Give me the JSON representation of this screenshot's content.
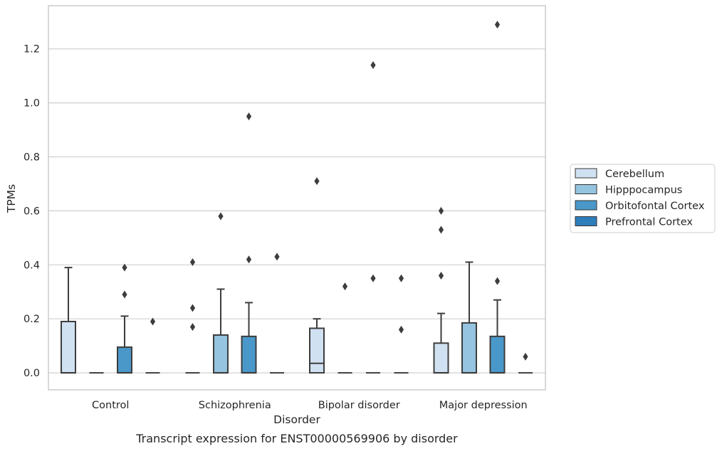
{
  "chart_data": {
    "type": "box",
    "caption": "Transcript expression for ENST00000569906 by disorder",
    "xlabel": "Disorder",
    "ylabel": "TPMs",
    "ylim": [
      -0.063,
      1.36
    ],
    "yticks": [
      0.0,
      0.2,
      0.4,
      0.6,
      0.8,
      1.0,
      1.2
    ],
    "ytick_labels": [
      "0.0",
      "0.2",
      "0.4",
      "0.6",
      "0.8",
      "1.0",
      "1.2"
    ],
    "grid": "horizontal",
    "legend_position": "right",
    "categories": [
      "Control",
      "Schizophrenia",
      "Bipolar disorder",
      "Major depression"
    ],
    "series": [
      {
        "name": "Cerebellum",
        "color": "#d0e1f2",
        "boxes": [
          {
            "q1": 0.0,
            "median": 0.0,
            "q3": 0.19,
            "whislo": 0.0,
            "whishi": 0.39,
            "fliers": []
          },
          {
            "q1": 0.0,
            "median": 0.0,
            "q3": 0.0,
            "whislo": 0.0,
            "whishi": 0.0,
            "fliers": [
              0.41,
              0.24,
              0.17
            ]
          },
          {
            "q1": 0.0,
            "median": 0.035,
            "q3": 0.165,
            "whislo": 0.0,
            "whishi": 0.2,
            "fliers": [
              0.71
            ]
          },
          {
            "q1": 0.0,
            "median": 0.0,
            "q3": 0.11,
            "whislo": 0.0,
            "whishi": 0.22,
            "fliers": [
              0.6,
              0.53,
              0.36
            ]
          }
        ]
      },
      {
        "name": "Hipppocampus",
        "color": "#94c4df",
        "boxes": [
          {
            "q1": 0.0,
            "median": 0.0,
            "q3": 0.0,
            "whislo": 0.0,
            "whishi": 0.0,
            "fliers": []
          },
          {
            "q1": 0.0,
            "median": 0.0,
            "q3": 0.14,
            "whislo": 0.0,
            "whishi": 0.31,
            "fliers": [
              0.58
            ]
          },
          {
            "q1": 0.0,
            "median": 0.0,
            "q3": 0.0,
            "whislo": 0.0,
            "whishi": 0.0,
            "fliers": [
              0.32
            ]
          },
          {
            "q1": 0.0,
            "median": 0.0,
            "q3": 0.185,
            "whislo": 0.0,
            "whishi": 0.41,
            "fliers": []
          }
        ]
      },
      {
        "name": "Orbitofontal Cortex",
        "color": "#4a98c9",
        "boxes": [
          {
            "q1": 0.0,
            "median": 0.0,
            "q3": 0.095,
            "whislo": 0.0,
            "whishi": 0.21,
            "fliers": [
              0.39,
              0.29
            ]
          },
          {
            "q1": 0.0,
            "median": 0.0,
            "q3": 0.135,
            "whislo": 0.0,
            "whishi": 0.26,
            "fliers": [
              0.95,
              0.42
            ]
          },
          {
            "q1": 0.0,
            "median": 0.0,
            "q3": 0.0,
            "whislo": 0.0,
            "whishi": 0.0,
            "fliers": [
              1.14,
              0.35
            ]
          },
          {
            "q1": 0.0,
            "median": 0.0,
            "q3": 0.135,
            "whislo": 0.0,
            "whishi": 0.27,
            "fliers": [
              1.29,
              0.34
            ]
          }
        ]
      },
      {
        "name": "Prefrontal Cortex",
        "color": "#2e7ebc",
        "boxes": [
          {
            "q1": 0.0,
            "median": 0.0,
            "q3": 0.0,
            "whislo": 0.0,
            "whishi": 0.0,
            "fliers": [
              0.19
            ]
          },
          {
            "q1": 0.0,
            "median": 0.0,
            "q3": 0.0,
            "whislo": 0.0,
            "whishi": 0.0,
            "fliers": [
              0.43
            ]
          },
          {
            "q1": 0.0,
            "median": 0.0,
            "q3": 0.0,
            "whislo": 0.0,
            "whishi": 0.0,
            "fliers": [
              0.35,
              0.16
            ]
          },
          {
            "q1": 0.0,
            "median": 0.0,
            "q3": 0.0,
            "whislo": 0.0,
            "whishi": 0.0,
            "fliers": [
              0.06
            ]
          }
        ]
      }
    ]
  }
}
